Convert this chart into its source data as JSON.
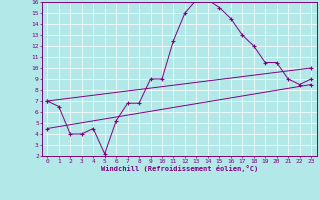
{
  "title": "",
  "xlabel": "Windchill (Refroidissement éolien,°C)",
  "xlim": [
    -0.5,
    23.5
  ],
  "ylim": [
    2,
    16
  ],
  "xticks": [
    0,
    1,
    2,
    3,
    4,
    5,
    6,
    7,
    8,
    9,
    10,
    11,
    12,
    13,
    14,
    15,
    16,
    17,
    18,
    19,
    20,
    21,
    22,
    23
  ],
  "yticks": [
    2,
    3,
    4,
    5,
    6,
    7,
    8,
    9,
    10,
    11,
    12,
    13,
    14,
    15,
    16
  ],
  "bg_color": "#b3e8e8",
  "line_color": "#800080",
  "grid_color": "#ffffff",
  "curve1_x": [
    0,
    1,
    2,
    3,
    4,
    5,
    6,
    7,
    8,
    9,
    10,
    11,
    12,
    13,
    14,
    15,
    16,
    17,
    18,
    19,
    20,
    21,
    22,
    23
  ],
  "curve1_y": [
    7.0,
    6.5,
    4.0,
    4.0,
    4.5,
    2.2,
    5.2,
    6.8,
    6.8,
    9.0,
    9.0,
    12.5,
    15.0,
    16.2,
    16.2,
    15.5,
    14.5,
    13.0,
    12.0,
    10.5,
    10.5,
    9.0,
    8.5,
    9.0
  ],
  "line2_x": [
    0,
    23
  ],
  "line2_y": [
    7.0,
    10.0
  ],
  "line3_x": [
    0,
    23
  ],
  "line3_y": [
    4.5,
    8.5
  ],
  "marker": "+"
}
